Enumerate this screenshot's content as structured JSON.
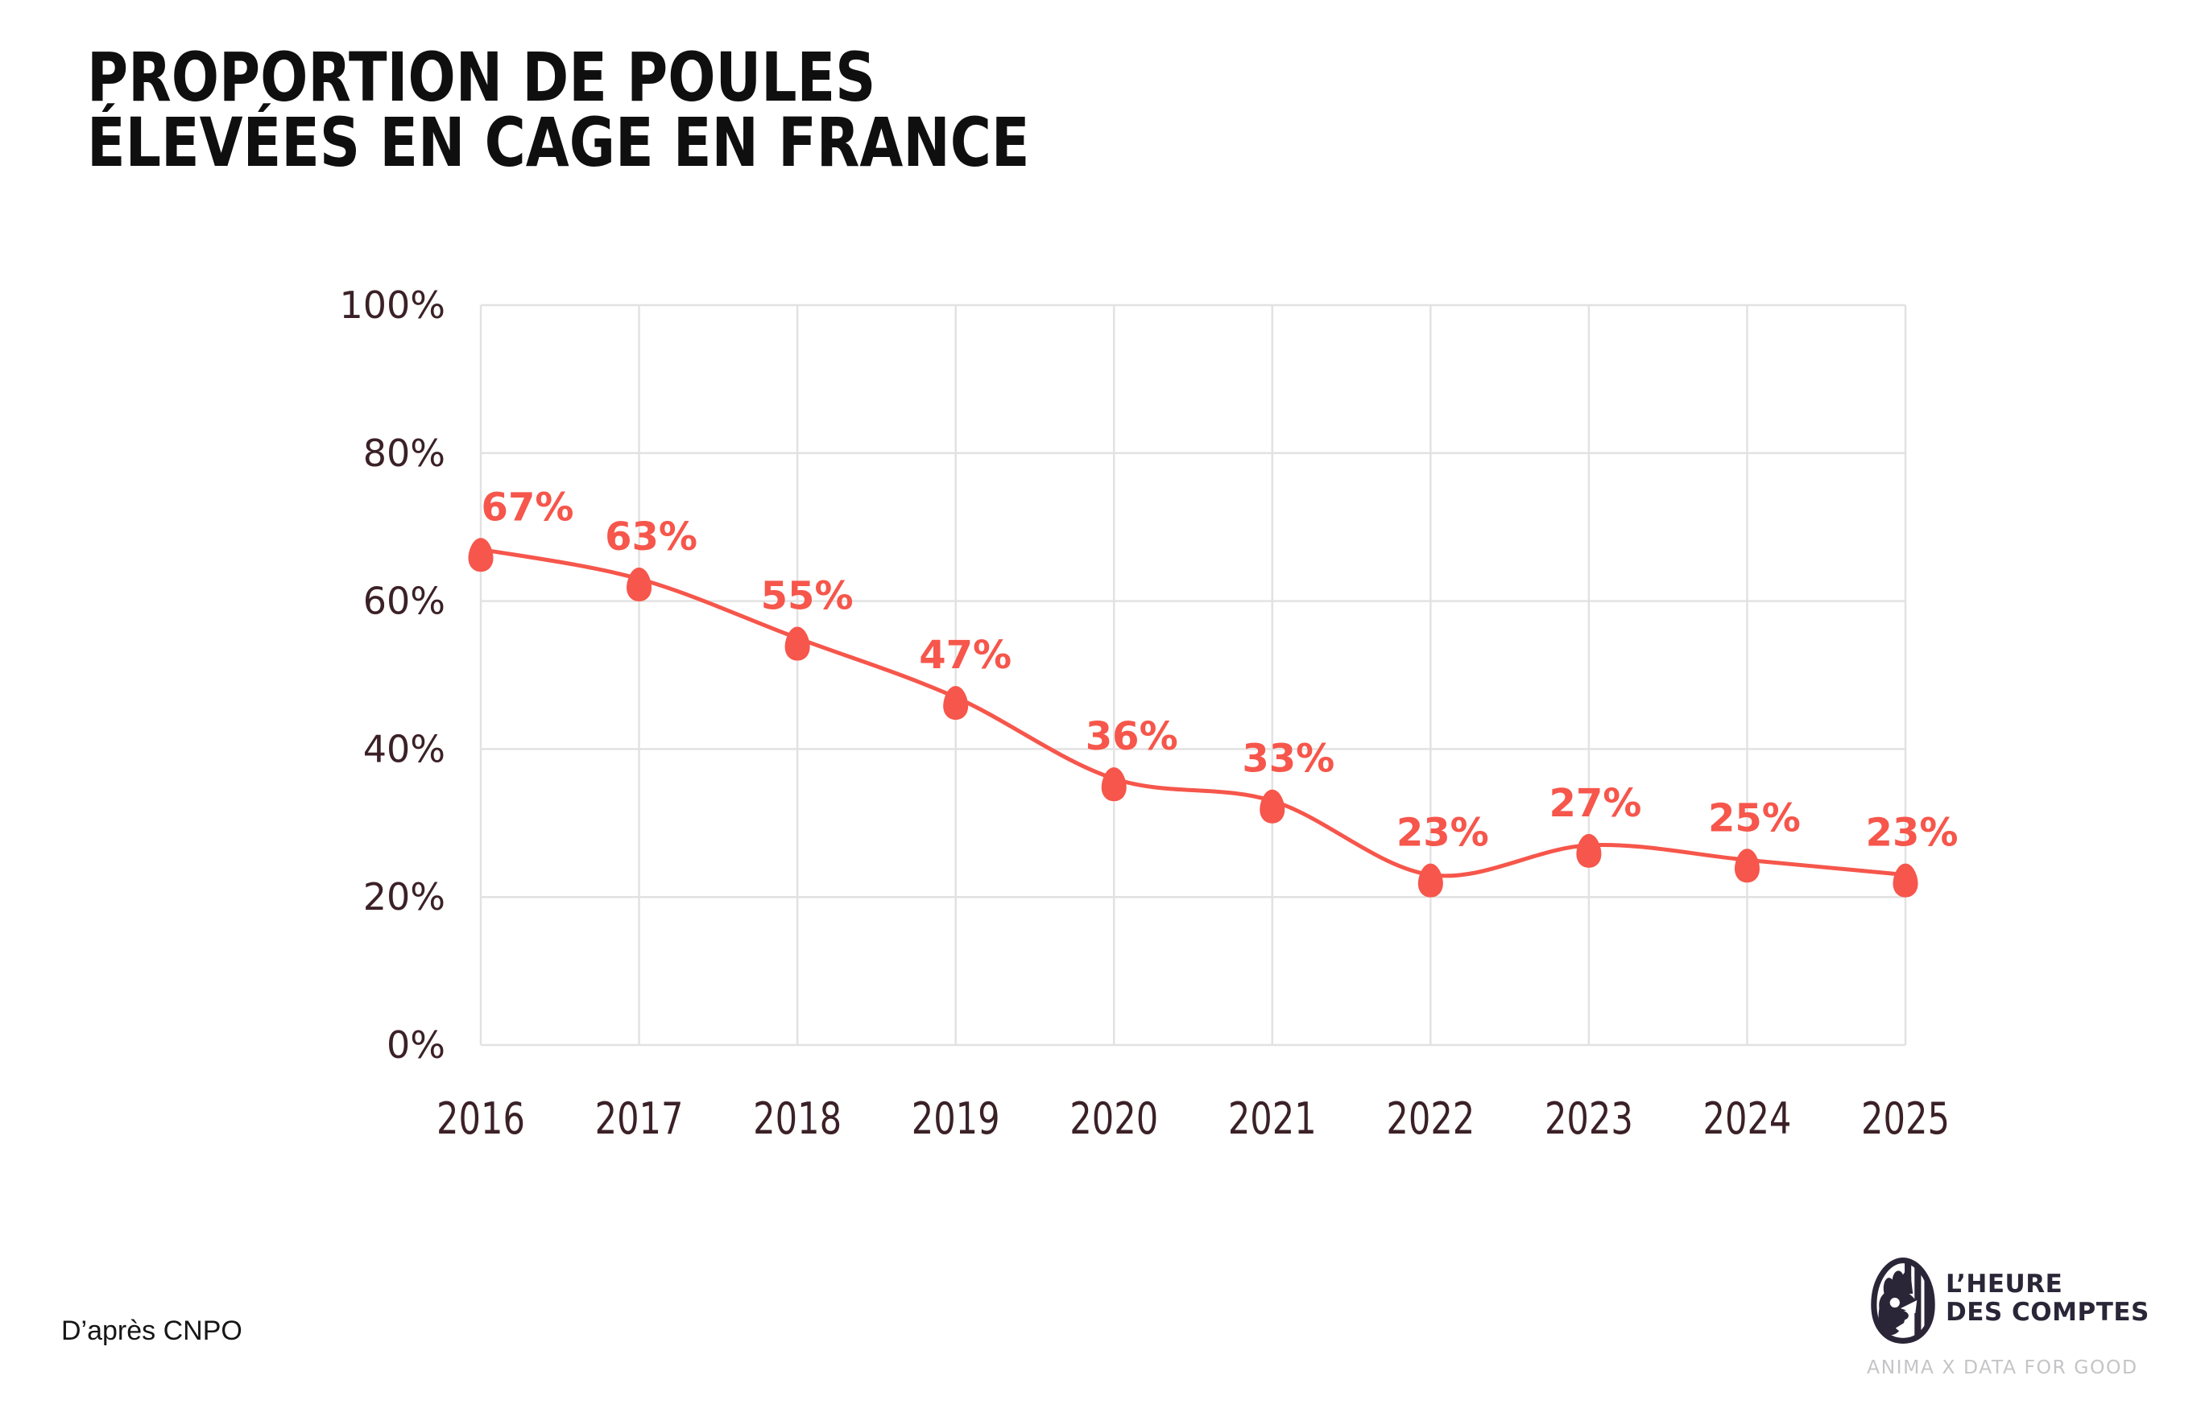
{
  "title": {
    "line1": "PROPORTION DE POULES",
    "line2": "ÉLEVÉES EN CAGE EN FRANCE"
  },
  "source": {
    "text": "D’après CNPO"
  },
  "logo": {
    "name_line1": "L’HEURE",
    "name_line2": "DES COMPTES",
    "tagline": "ANIMA X DATA FOR GOOD",
    "icon": "hen-in-egg"
  },
  "colors": {
    "accent": "#f6564b",
    "axis_text": "#3b2127",
    "grid": "#e3e2e2",
    "title_text": "#0f0f0f",
    "logo_navy": "#2a2638",
    "tagline_gray": "#c5c4c7",
    "background": "#ffffff"
  },
  "chart_data": {
    "type": "line",
    "title": "Proportion de poules élevées en cage en France",
    "x": [
      2016,
      2017,
      2018,
      2019,
      2020,
      2021,
      2022,
      2023,
      2024,
      2025
    ],
    "x_labels": [
      "2016",
      "2017",
      "2018",
      "2019",
      "2020",
      "2021",
      "2022",
      "2023",
      "2024",
      "2025"
    ],
    "values": [
      67,
      63,
      55,
      47,
      36,
      33,
      23,
      27,
      25,
      23
    ],
    "point_labels": [
      "67%",
      "63%",
      "55%",
      "47%",
      "36%",
      "33%",
      "23%",
      "27%",
      "25%",
      "23%"
    ],
    "unit": "%",
    "ylim": [
      0,
      100
    ],
    "y_ticks": [
      0,
      20,
      40,
      60,
      80,
      100
    ],
    "y_tick_labels": [
      "0%",
      "20%",
      "40%",
      "60%",
      "80%",
      "100%"
    ],
    "grid": true,
    "legend": "none",
    "marker": "egg",
    "line_smooth": true,
    "label_dx": [
      58,
      15,
      12,
      12,
      22,
      20,
      15,
      8,
      9,
      8
    ],
    "layout": {
      "plot_left": 597,
      "plot_right": 2366,
      "plot_top": 379,
      "plot_bottom": 1298,
      "y_label_right": 553,
      "x_label_baseline": 1408,
      "marker_rx": 15.5,
      "marker_ry": 21,
      "marker_dy": 7,
      "line_width": 5
    }
  }
}
